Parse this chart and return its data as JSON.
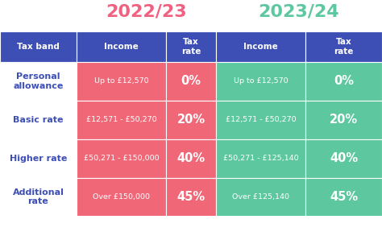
{
  "title_2022": "2022/23",
  "title_2023": "2023/24",
  "title_color_2022": "#f06080",
  "title_color_2023": "#5dc8a0",
  "header_bg": "#3d4fb5",
  "header_text_color": "#ffffff",
  "col1_bg": "#ffffff",
  "col1_text_color": "#3d4fb5",
  "col_2022_income_bg": "#f06878",
  "col_2022_tax_bg": "#f06878",
  "col_2023_income_bg": "#5dc8a0",
  "col_2023_tax_bg": "#5dc8a0",
  "pink_text": "#ffffff",
  "green_text": "#ffffff",
  "row_labels": [
    "Personal\nallowance",
    "Basic rate",
    "Higher rate",
    "Additional\nrate"
  ],
  "income_2022": [
    "Up to £12,570",
    "£12,571 - £50,270",
    "£50,271 - £150,000",
    "Over £150,000"
  ],
  "tax_2022": [
    "0%",
    "20%",
    "40%",
    "45%"
  ],
  "income_2023": [
    "Up to £12,570",
    "£12,571 - £50,270",
    "£50,271 - £125,140",
    "Over £125,140"
  ],
  "tax_2023": [
    "0%",
    "20%",
    "40%",
    "45%"
  ],
  "col_headers": [
    "Tax band",
    "Income",
    "Tax\nrate",
    "Income",
    "Tax\nrate"
  ],
  "grid_color": "#ffffff",
  "bg_color": "#ffffff"
}
